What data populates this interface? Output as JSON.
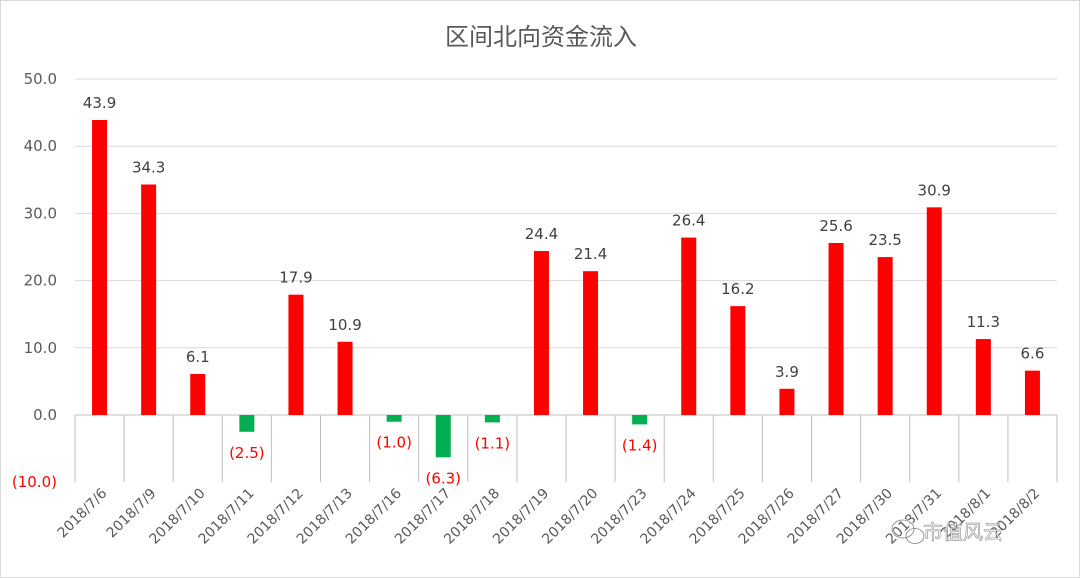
{
  "chart_data": {
    "type": "bar",
    "title": "区间北向资金流入",
    "xlabel": "",
    "ylabel": "",
    "ylim": [
      -10,
      50
    ],
    "yticks": [
      -10,
      0,
      10,
      20,
      30,
      40,
      50
    ],
    "ytick_labels": [
      "(10.0)",
      "0.0",
      "10.0",
      "20.0",
      "30.0",
      "40.0",
      "50.0"
    ],
    "grid": true,
    "legend": "none",
    "categories": [
      "2018/7/6",
      "2018/7/9",
      "2018/7/10",
      "2018/7/11",
      "2018/7/12",
      "2018/7/13",
      "2018/7/16",
      "2018/7/17",
      "2018/7/18",
      "2018/7/19",
      "2018/7/20",
      "2018/7/23",
      "2018/7/24",
      "2018/7/25",
      "2018/7/26",
      "2018/7/27",
      "2018/7/30",
      "2018/7/31",
      "2018/8/1",
      "2018/8/2"
    ],
    "values": [
      43.9,
      34.3,
      6.1,
      -2.5,
      17.9,
      10.9,
      -1.0,
      -6.3,
      -1.1,
      24.4,
      21.4,
      -1.4,
      26.4,
      16.2,
      3.9,
      25.6,
      23.5,
      30.9,
      11.3,
      6.6
    ],
    "data_labels": [
      "43.9",
      "34.3",
      "6.1",
      "(2.5)",
      "17.9",
      "10.9",
      "(1.0)",
      "(6.3)",
      "(1.1)",
      "24.4",
      "21.4",
      "(1.4)",
      "26.4",
      "16.2",
      "3.9",
      "25.6",
      "23.5",
      "30.9",
      "11.3",
      "6.6"
    ],
    "colors": {
      "positive": "#ff0000",
      "negative": "#00b050",
      "negative_label": "#ff0000"
    }
  },
  "watermark": {
    "text": "市值风云",
    "icon": "wechat-icon"
  }
}
